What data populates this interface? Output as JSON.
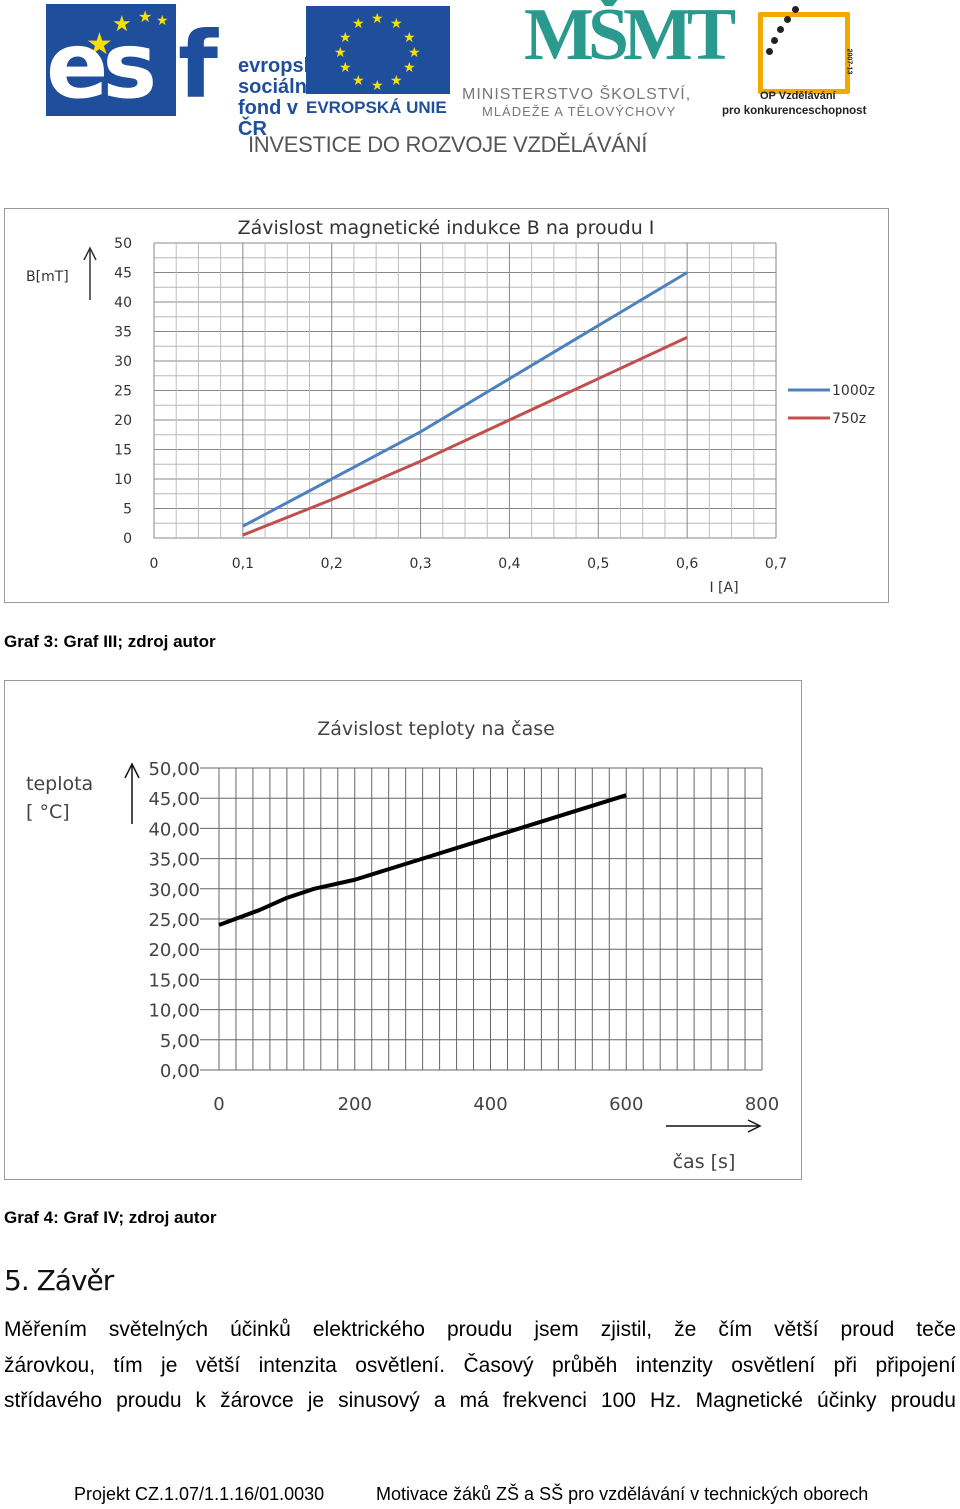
{
  "header": {
    "esf_logo_big": "es",
    "esf_logo_f": "f",
    "esf_line1": "evropský",
    "esf_line2": "sociální",
    "esf_line3": "fond v ČR",
    "eu_label": "EVROPSKÁ UNIE",
    "msmt_mark": "MŠMT",
    "msmt_line1": "MINISTERSTVO ŠKOLSTVÍ,",
    "msmt_line2": "MLÁDEŽE A TĚLOVÝCHOVY",
    "op_years": "2007-13",
    "op_line1": "OP Vzdělávání",
    "op_line2": "pro konkurenceschopnost",
    "investice": "INVESTICE DO ROZVOJE VZDĚLÁVÁNÍ"
  },
  "chart_data": [
    {
      "type": "line",
      "title": "Závislost magnetické indukce B na proudu I",
      "xlabel": "I [A]",
      "ylabel": "B[mT]",
      "xlim": [
        0,
        0.7
      ],
      "ylim": [
        0,
        50
      ],
      "x_ticks": [
        "0",
        "0,1",
        "0,2",
        "0,3",
        "0,4",
        "0,5",
        "0,6",
        "0,7"
      ],
      "y_ticks": [
        "0",
        "5",
        "10",
        "15",
        "20",
        "25",
        "30",
        "35",
        "40",
        "45",
        "50"
      ],
      "grid": true,
      "legend": "right",
      "series": [
        {
          "name": "1000z",
          "color": "#4f81bd",
          "x": [
            0.1,
            0.2,
            0.3,
            0.4,
            0.5,
            0.6
          ],
          "y": [
            2,
            10,
            18,
            27,
            36,
            45
          ]
        },
        {
          "name": "750z",
          "color": "#c0504d",
          "x": [
            0.1,
            0.2,
            0.3,
            0.4,
            0.5,
            0.6
          ],
          "y": [
            0.5,
            6.5,
            13,
            20,
            27,
            34
          ]
        }
      ]
    },
    {
      "type": "line",
      "title": "Závislost teploty na čase",
      "xlabel": "čas [s]",
      "ylabel_line1": "teplota",
      "ylabel_line2": "[ °C]",
      "xlim": [
        0,
        800
      ],
      "ylim": [
        0,
        50
      ],
      "x_ticks": [
        "0",
        "200",
        "400",
        "600",
        "800"
      ],
      "y_ticks": [
        "0,00",
        "5,00",
        "10,00",
        "15,00",
        "20,00",
        "25,00",
        "30,00",
        "35,00",
        "40,00",
        "45,00",
        "50,00"
      ],
      "grid": true,
      "series": [
        {
          "color": "#000000",
          "x": [
            0,
            60,
            100,
            140,
            200,
            300,
            400,
            500,
            600
          ],
          "y": [
            24,
            26.5,
            28.5,
            30,
            31.5,
            35,
            38.5,
            42,
            45.5
          ]
        }
      ]
    }
  ],
  "captions": {
    "graf3": "Graf 3: Graf III; zdroj autor",
    "graf4": "Graf 4: Graf IV; zdroj autor"
  },
  "section": {
    "title": "5. Závěr",
    "lines": [
      "Měřením světelných účinků elektrického proudu jsem zjistil, že čím větší proud teče",
      "žárovkou, tím je větší intenzita osvětlení. Časový průběh intenzity osvětlení při připojení",
      "střídavého proudu k žárovce je sinusový a má frekvenci 100 Hz. Magnetické účinky proudu"
    ]
  },
  "footer": {
    "project": "Projekt CZ.1.07/1.1.16/01.0030",
    "motto": "Motivace žáků ZŠ a SŠ pro vzdělávání v technických oborech"
  }
}
